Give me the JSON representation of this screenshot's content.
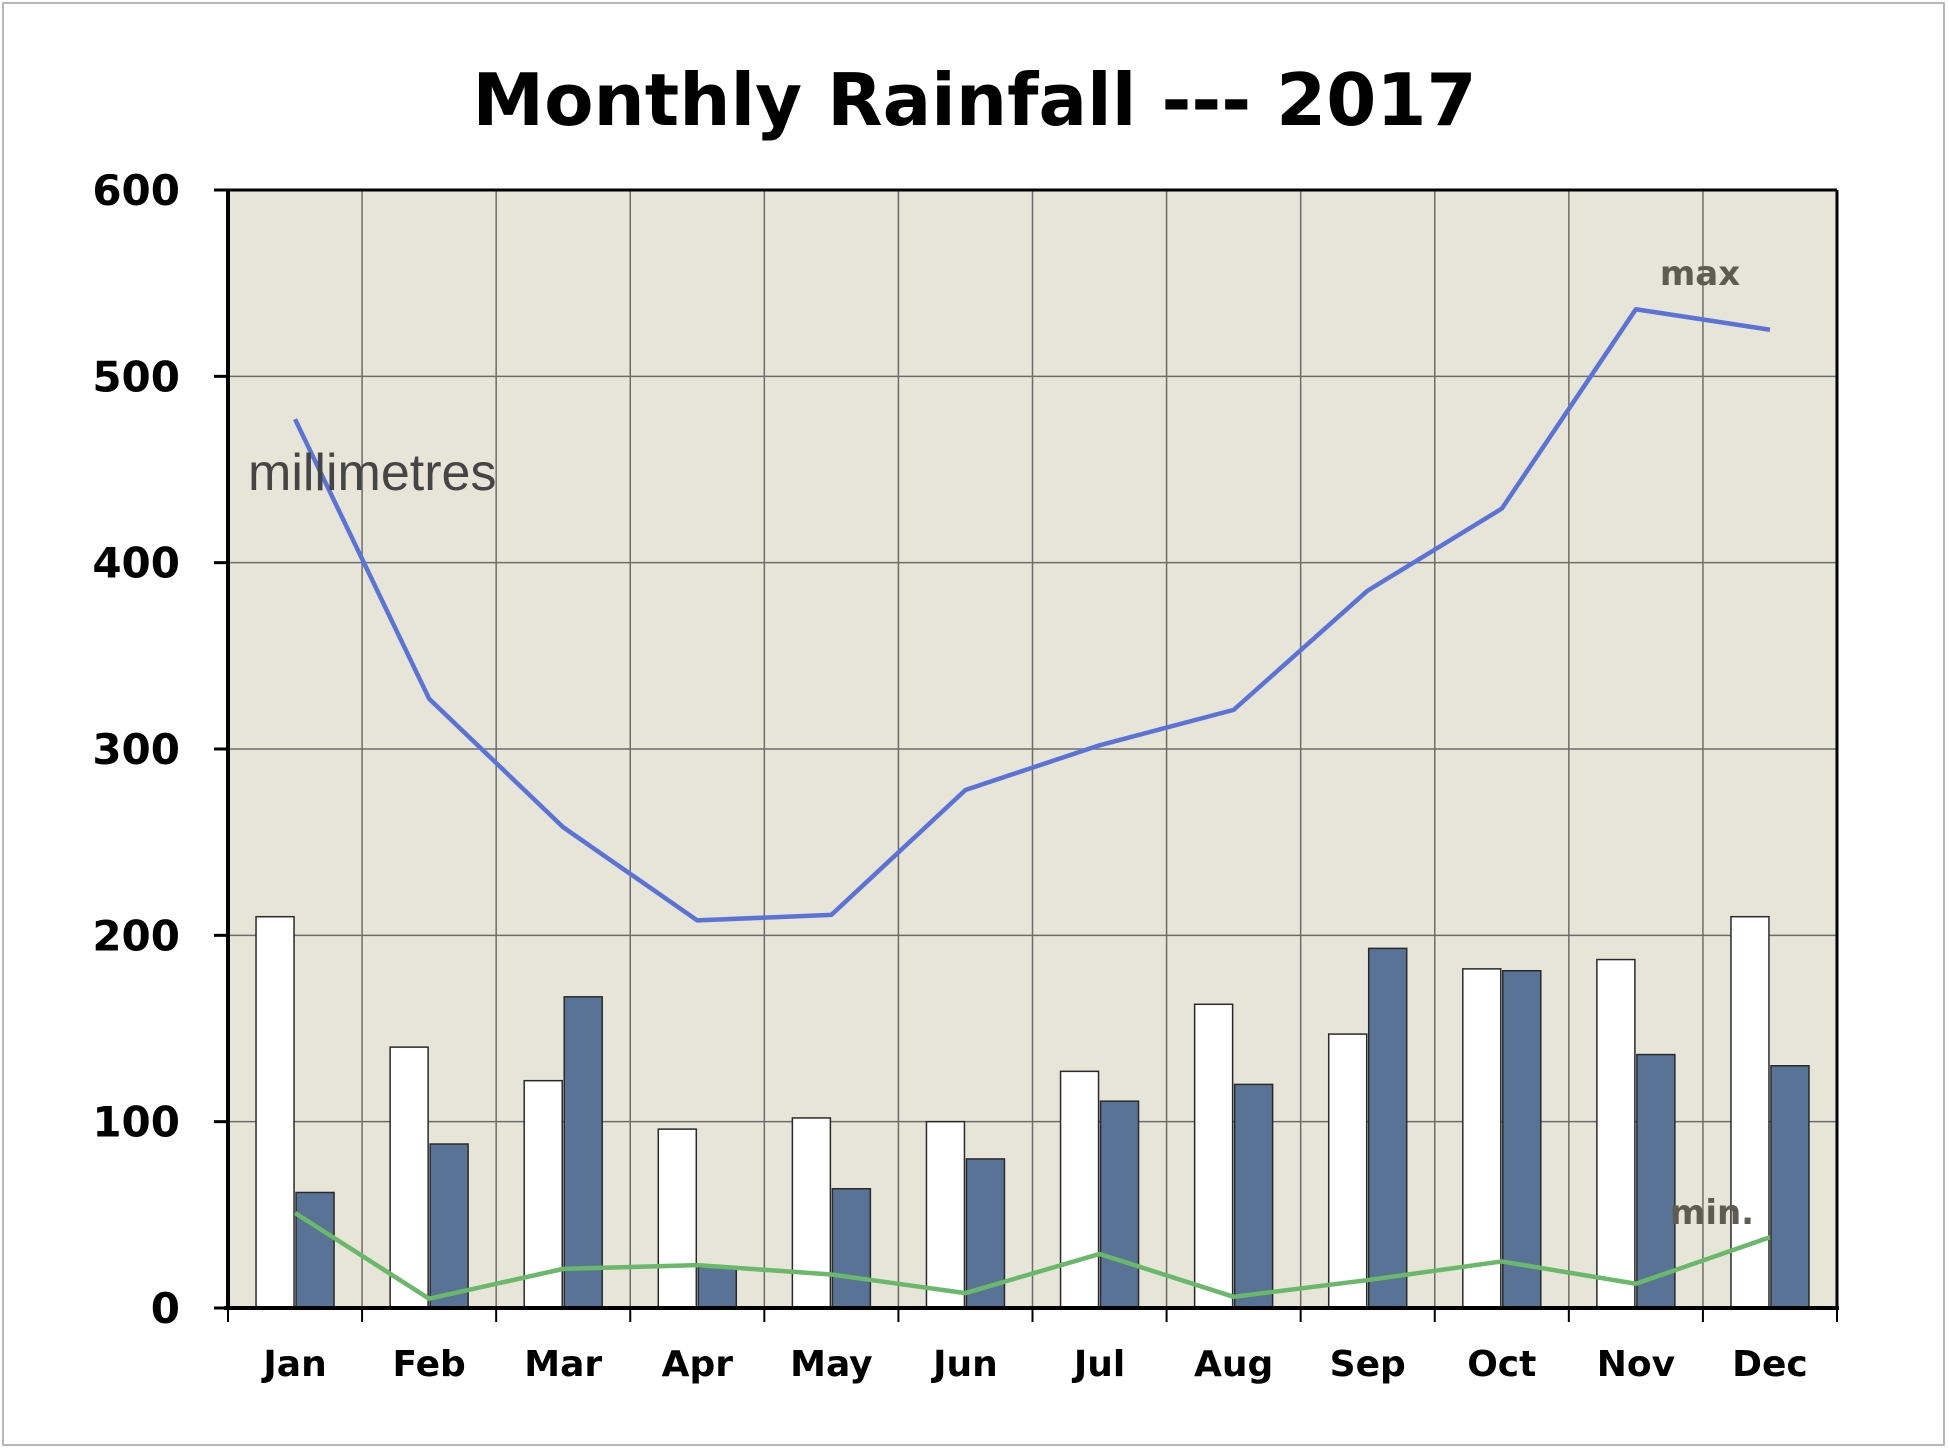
{
  "chart_data": {
    "type": "bar",
    "title": "Monthly Rainfall --- 2017",
    "categories": [
      "Jan",
      "Feb",
      "Mar",
      "Apr",
      "May",
      "Jun",
      "Jul",
      "Aug",
      "Sep",
      "Oct",
      "Nov",
      "Dec"
    ],
    "series": [
      {
        "kind": "bar",
        "color": "#ffffff",
        "values": [
          210,
          140,
          122,
          96,
          102,
          100,
          127,
          163,
          147,
          182,
          187,
          210
        ]
      },
      {
        "kind": "bar",
        "color": "#587396",
        "values": [
          62,
          88,
          167,
          22,
          64,
          80,
          111,
          120,
          193,
          181,
          136,
          130
        ]
      },
      {
        "kind": "line",
        "name": "max",
        "color": "#5b73d6",
        "values": [
          477,
          327,
          258,
          208,
          211,
          278,
          302,
          321,
          385,
          429,
          536,
          525
        ]
      },
      {
        "kind": "line",
        "name": "min.",
        "color": "#6ab86a",
        "values": [
          51,
          5,
          21,
          23,
          18,
          8,
          29,
          6,
          15,
          25,
          13,
          38
        ]
      }
    ],
    "annotations": {
      "unit": "millimetres",
      "max": "max",
      "min": "min."
    },
    "yticks": [
      0,
      100,
      200,
      300,
      400,
      500,
      600
    ],
    "ylim": [
      0,
      600
    ],
    "grid": true,
    "plot_background": "#e7e4d8"
  }
}
